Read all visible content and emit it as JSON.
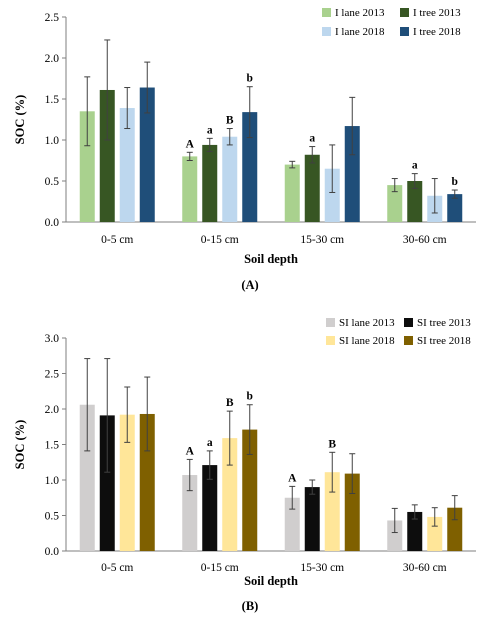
{
  "chart_data": [
    {
      "type": "bar",
      "panel_label": "(A)",
      "xlabel": "Soil depth",
      "ylabel": "SOC (%)",
      "ylim": [
        0,
        2.5
      ],
      "yticks": [
        "0.0",
        "0.5",
        "1.0",
        "1.5",
        "2.0",
        "2.5"
      ],
      "grid": false,
      "legend_position": "top-right",
      "categories": [
        "0-5 cm",
        "0-15 cm",
        "15-30 cm",
        "30-60 cm"
      ],
      "series": [
        {
          "name": "I lane 2013",
          "color": "#a9d18e",
          "values": [
            1.35,
            0.8,
            0.7,
            0.45
          ],
          "err": [
            0.42,
            0.05,
            0.04,
            0.08
          ],
          "labels": [
            "",
            "A",
            "",
            ""
          ]
        },
        {
          "name": "I tree 2013",
          "color": "#375623",
          "values": [
            1.61,
            0.94,
            0.82,
            0.5
          ],
          "err": [
            0.61,
            0.08,
            0.1,
            0.09
          ],
          "labels": [
            "",
            "a",
            "a",
            "a"
          ]
        },
        {
          "name": "I lane 2018",
          "color": "#bdd7ee",
          "values": [
            1.39,
            1.04,
            0.65,
            0.32
          ],
          "err": [
            0.25,
            0.1,
            0.29,
            0.21
          ],
          "labels": [
            "",
            "B",
            "",
            ""
          ]
        },
        {
          "name": "I tree 2018",
          "color": "#1f4e79",
          "values": [
            1.64,
            1.34,
            1.17,
            0.34
          ],
          "err": [
            0.31,
            0.31,
            0.35,
            0.05
          ],
          "labels": [
            "",
            "b",
            "",
            "b"
          ]
        }
      ]
    },
    {
      "type": "bar",
      "panel_label": "(B)",
      "xlabel": "Soil depth",
      "ylabel": "SOC (%)",
      "ylim": [
        0,
        3.0
      ],
      "yticks": [
        "0.0",
        "0.5",
        "1.0",
        "1.5",
        "2.0",
        "2.5",
        "3.0"
      ],
      "grid": false,
      "legend_position": "top-right",
      "categories": [
        "0-5 cm",
        "0-15 cm",
        "15-30 cm",
        "30-60 cm"
      ],
      "series": [
        {
          "name": "SI lane 2013",
          "color": "#d0cece",
          "values": [
            2.06,
            1.07,
            0.75,
            0.43
          ],
          "err": [
            0.65,
            0.22,
            0.16,
            0.17
          ],
          "labels": [
            "",
            "A",
            "A",
            ""
          ]
        },
        {
          "name": "SI tree 2013",
          "color": "#0d0d0d",
          "values": [
            1.91,
            1.21,
            0.9,
            0.55
          ],
          "err": [
            0.8,
            0.2,
            0.1,
            0.1
          ],
          "labels": [
            "",
            "a",
            "",
            ""
          ]
        },
        {
          "name": "SI lane 2018",
          "color": "#ffe699",
          "values": [
            1.92,
            1.59,
            1.11,
            0.48
          ],
          "err": [
            0.39,
            0.38,
            0.28,
            0.13
          ],
          "labels": [
            "",
            "B",
            "B",
            ""
          ]
        },
        {
          "name": "SI tree 2018",
          "color": "#7f6000",
          "values": [
            1.93,
            1.71,
            1.09,
            0.61
          ],
          "err": [
            0.52,
            0.35,
            0.28,
            0.17
          ],
          "labels": [
            "",
            "b",
            "",
            ""
          ]
        }
      ]
    }
  ]
}
